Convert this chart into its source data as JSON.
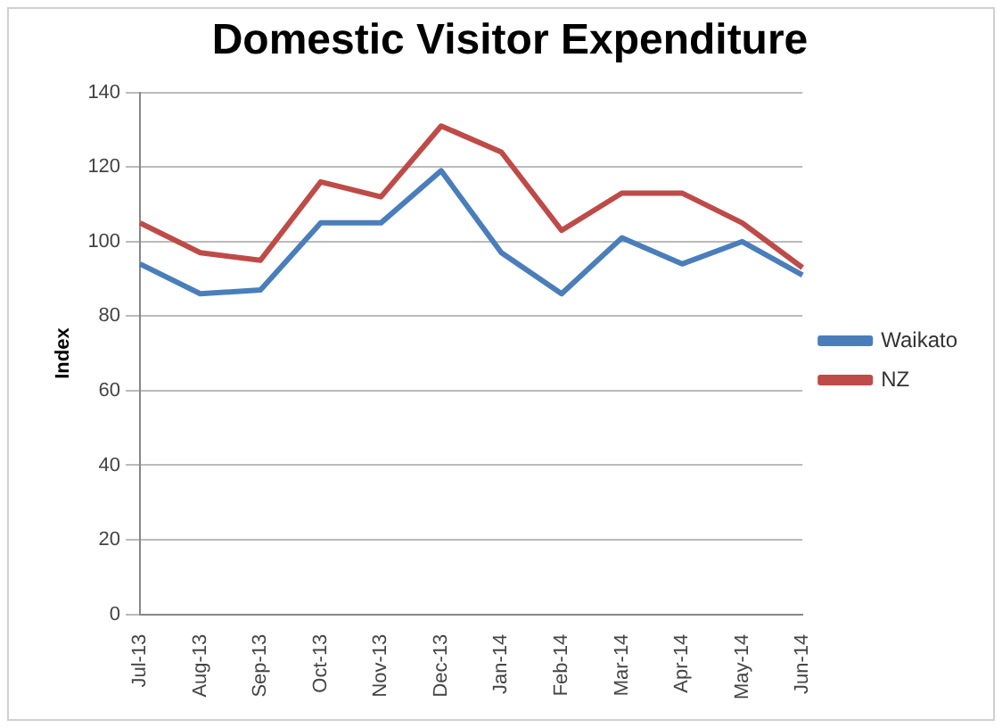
{
  "chart_data": {
    "type": "line",
    "title": "Domestic Visitor Expenditure",
    "ylabel": "Index",
    "categories": [
      "Jul-13",
      "Aug-13",
      "Sep-13",
      "Oct-13",
      "Nov-13",
      "Dec-13",
      "Jan-14",
      "Feb-14",
      "Mar-14",
      "Apr-14",
      "May-14",
      "Jun-14"
    ],
    "series": [
      {
        "name": "Waikato",
        "color": "#4a7ebb",
        "values": [
          94,
          86,
          87,
          105,
          105,
          119,
          97,
          86,
          101,
          94,
          100,
          91
        ]
      },
      {
        "name": "NZ",
        "color": "#be4b48",
        "values": [
          105,
          97,
          95,
          116,
          112,
          131,
          124,
          103,
          113,
          113,
          105,
          93
        ]
      }
    ],
    "ylim": [
      0,
      140
    ],
    "yticks": [
      0,
      20,
      40,
      60,
      80,
      100,
      120,
      140
    ],
    "grid": "y",
    "legend": "right",
    "marker": "none"
  }
}
